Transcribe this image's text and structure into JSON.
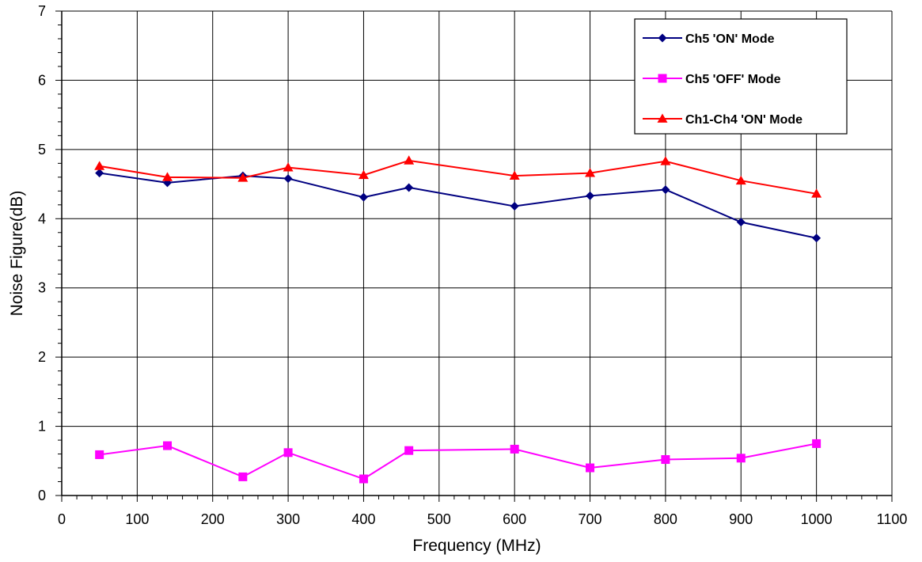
{
  "chart_data": {
    "type": "line",
    "title": "",
    "xlabel": "Frequency (MHz)",
    "ylabel": "Noise Figure(dB)",
    "xlim": [
      0,
      1100
    ],
    "ylim": [
      0,
      7
    ],
    "x_ticks": [
      0,
      100,
      200,
      300,
      400,
      500,
      600,
      700,
      800,
      900,
      1000,
      1100
    ],
    "y_ticks": [
      0,
      1,
      2,
      3,
      4,
      5,
      6,
      7
    ],
    "grid": true,
    "legend_position": "top-right",
    "series": [
      {
        "name": "Ch5 'ON' Mode",
        "color": "#000080",
        "marker": "diamond",
        "x": [
          50,
          140,
          240,
          300,
          400,
          460,
          600,
          700,
          800,
          900,
          1000
        ],
        "values": [
          4.66,
          4.52,
          4.62,
          4.58,
          4.31,
          4.45,
          4.18,
          4.33,
          4.42,
          3.95,
          3.72
        ]
      },
      {
        "name": "Ch5 'OFF' Mode",
        "color": "#ff00ff",
        "marker": "square",
        "x": [
          50,
          140,
          240,
          300,
          400,
          460,
          600,
          700,
          800,
          900,
          1000
        ],
        "values": [
          0.59,
          0.72,
          0.27,
          0.62,
          0.24,
          0.65,
          0.67,
          0.4,
          0.52,
          0.54,
          0.75
        ]
      },
      {
        "name": "Ch1-Ch4 'ON' Mode",
        "color": "#ff0000",
        "marker": "triangle",
        "x": [
          50,
          140,
          240,
          300,
          400,
          460,
          600,
          700,
          800,
          900,
          1000
        ],
        "values": [
          4.76,
          4.6,
          4.59,
          4.74,
          4.63,
          4.84,
          4.62,
          4.66,
          4.83,
          4.55,
          4.36
        ]
      }
    ]
  }
}
